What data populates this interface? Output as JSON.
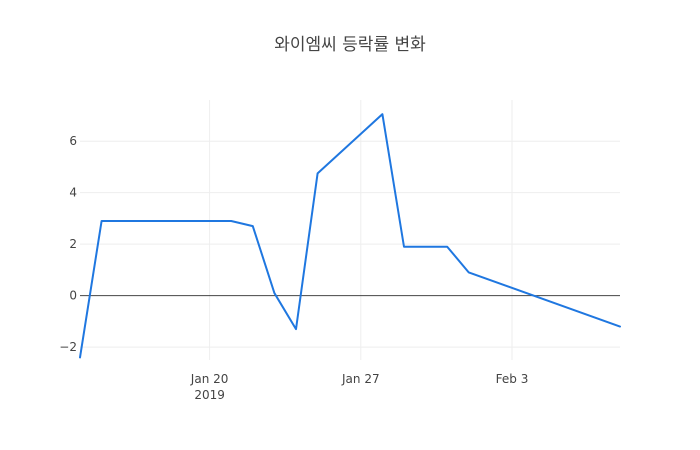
{
  "chart_data": {
    "type": "line",
    "title": "와이엠씨 등락률 변화",
    "xlabel": "",
    "ylabel": "",
    "x_range": [
      "2019-01-14",
      "2019-02-08"
    ],
    "ylim": [
      -2.5,
      7.6
    ],
    "grid": true,
    "zero_line": true,
    "legend": "none",
    "x_ticks": [
      {
        "date": "2019-01-20",
        "label": "Jan 20",
        "sublabel": "2019"
      },
      {
        "date": "2019-01-27",
        "label": "Jan 27",
        "sublabel": ""
      },
      {
        "date": "2019-02-03",
        "label": "Feb 3",
        "sublabel": ""
      }
    ],
    "y_ticks": [
      {
        "value": -2,
        "label": "−2"
      },
      {
        "value": 0,
        "label": "0"
      },
      {
        "value": 2,
        "label": "2"
      },
      {
        "value": 4,
        "label": "4"
      },
      {
        "value": 6,
        "label": "6"
      }
    ],
    "series": [
      {
        "color": "#1f77e0",
        "points": [
          {
            "x": "2019-01-14",
            "y": -2.4
          },
          {
            "x": "2019-01-15",
            "y": 2.9
          },
          {
            "x": "2019-01-21",
            "y": 2.9
          },
          {
            "x": "2019-01-22",
            "y": 2.7
          },
          {
            "x": "2019-01-23",
            "y": 0.1
          },
          {
            "x": "2019-01-24",
            "y": -1.3
          },
          {
            "x": "2019-01-25",
            "y": 4.75
          },
          {
            "x": "2019-01-28",
            "y": 7.05
          },
          {
            "x": "2019-01-29",
            "y": 1.9
          },
          {
            "x": "2019-01-31",
            "y": 1.9
          },
          {
            "x": "2019-02-01",
            "y": 0.9
          },
          {
            "x": "2019-02-08",
            "y": -1.2
          }
        ]
      }
    ]
  }
}
